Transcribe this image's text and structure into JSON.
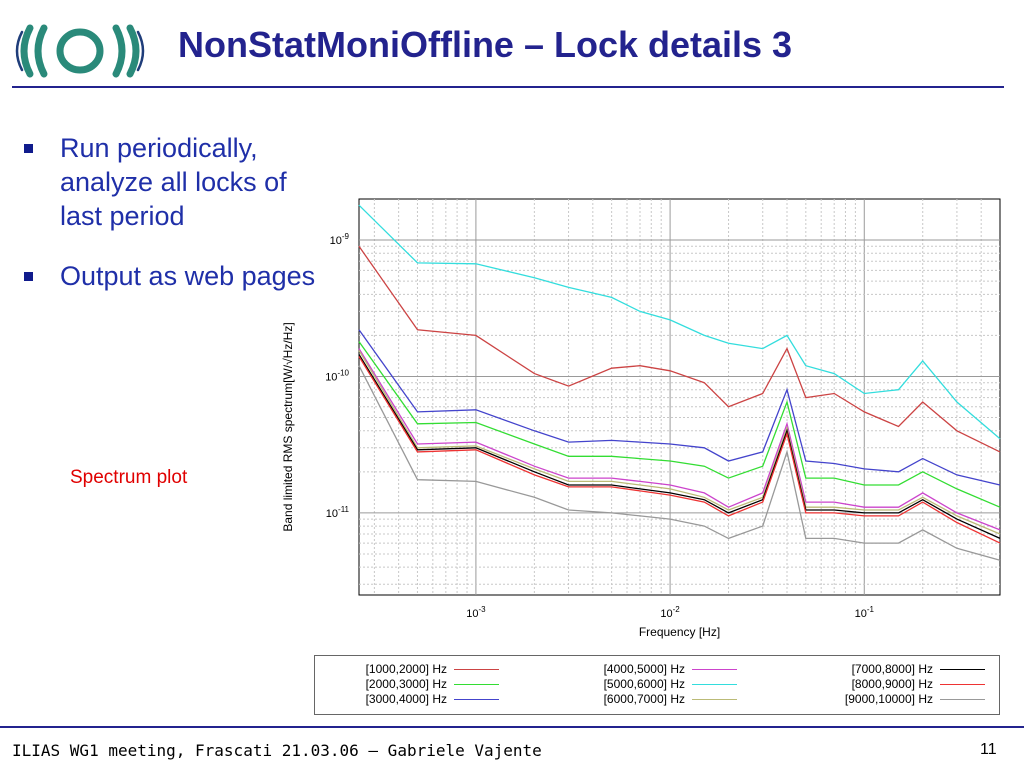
{
  "slide": {
    "title": "NonStatMoniOffline – Lock details 3",
    "bullets": [
      "Run periodically, analyze all locks of last period",
      "Output as web pages"
    ],
    "caption": "Spectrum plot",
    "footer": "ILIAS WG1 meeting, Frascati 21.03.06 – Gabriele Vajente",
    "page_number": "11",
    "logo": "ilias-logo"
  },
  "colors": {
    "title": "#23238e",
    "bullet_text": "#1f2fa8",
    "caption": "#e00000"
  },
  "chart_data": {
    "type": "line",
    "xlabel": "Frequency [Hz]",
    "ylabel": "Band limited RMS spectrum[W/√Hz/Hz]",
    "x_scale": "log",
    "y_scale": "log",
    "xlim": [
      0.00025,
      0.5
    ],
    "ylim": [
      2.5e-12,
      2e-09
    ],
    "xticks": [
      {
        "value": 0.001,
        "base": "10",
        "exp": "-3"
      },
      {
        "value": 0.01,
        "base": "10",
        "exp": "-2"
      },
      {
        "value": 0.1,
        "base": "10",
        "exp": "-1"
      }
    ],
    "yticks": [
      {
        "value": 1e-09,
        "base": "10",
        "exp": "-9"
      },
      {
        "value": 1e-10,
        "base": "10",
        "exp": "-10"
      },
      {
        "value": 1e-11,
        "base": "10",
        "exp": "-11"
      }
    ],
    "grid": true,
    "legend": "below",
    "series": [
      {
        "name": "[1000,2000] Hz",
        "color": "#cc4444",
        "x": [
          0.00025,
          0.0005,
          0.001,
          0.002,
          0.003,
          0.005,
          0.007,
          0.01,
          0.015,
          0.02,
          0.03,
          0.04,
          0.05,
          0.07,
          0.1,
          0.15,
          0.2,
          0.3,
          0.5
        ],
        "y": [
          9e-10,
          2.2e-10,
          2e-10,
          1.05e-10,
          8.5e-11,
          1.15e-10,
          1.2e-10,
          1.1e-10,
          9e-11,
          6e-11,
          7.5e-11,
          1.6e-10,
          7e-11,
          7.5e-11,
          5.5e-11,
          4.3e-11,
          6.5e-11,
          4e-11,
          2.8e-11
        ]
      },
      {
        "name": "[2000,3000] Hz",
        "color": "#33dd33",
        "x": [
          0.00025,
          0.0005,
          0.001,
          0.002,
          0.003,
          0.005,
          0.007,
          0.01,
          0.015,
          0.02,
          0.03,
          0.04,
          0.05,
          0.07,
          0.1,
          0.15,
          0.2,
          0.3,
          0.5
        ],
        "y": [
          1.8e-10,
          4.5e-11,
          4.6e-11,
          3.2e-11,
          2.6e-11,
          2.6e-11,
          2.5e-11,
          2.4e-11,
          2.2e-11,
          1.8e-11,
          2.2e-11,
          6.5e-11,
          1.8e-11,
          1.8e-11,
          1.6e-11,
          1.6e-11,
          2e-11,
          1.5e-11,
          1.1e-11
        ]
      },
      {
        "name": "[3000,4000] Hz",
        "color": "#4444cc",
        "x": [
          0.00025,
          0.0005,
          0.001,
          0.002,
          0.003,
          0.005,
          0.007,
          0.01,
          0.015,
          0.02,
          0.03,
          0.04,
          0.05,
          0.07,
          0.1,
          0.15,
          0.2,
          0.3,
          0.5
        ],
        "y": [
          2.2e-10,
          5.5e-11,
          5.7e-11,
          4e-11,
          3.3e-11,
          3.4e-11,
          3.3e-11,
          3.2e-11,
          3e-11,
          2.4e-11,
          2.8e-11,
          8e-11,
          2.4e-11,
          2.3e-11,
          2.1e-11,
          2e-11,
          2.5e-11,
          1.9e-11,
          1.6e-11
        ]
      },
      {
        "name": "[4000,5000] Hz",
        "color": "#cc44cc",
        "x": [
          0.00025,
          0.0005,
          0.001,
          0.002,
          0.003,
          0.005,
          0.007,
          0.01,
          0.015,
          0.02,
          0.03,
          0.04,
          0.05,
          0.07,
          0.1,
          0.15,
          0.2,
          0.3,
          0.5
        ],
        "y": [
          1.6e-10,
          3.2e-11,
          3.3e-11,
          2.2e-11,
          1.8e-11,
          1.8e-11,
          1.7e-11,
          1.6e-11,
          1.4e-11,
          1.1e-11,
          1.4e-11,
          4.5e-11,
          1.2e-11,
          1.2e-11,
          1.1e-11,
          1.1e-11,
          1.4e-11,
          1e-11,
          7.5e-12
        ]
      },
      {
        "name": "[5000,6000] Hz",
        "color": "#33dddd",
        "x": [
          0.00025,
          0.0005,
          0.001,
          0.002,
          0.003,
          0.005,
          0.007,
          0.01,
          0.015,
          0.02,
          0.03,
          0.04,
          0.05,
          0.07,
          0.1,
          0.15,
          0.2,
          0.3,
          0.5
        ],
        "y": [
          1.8e-09,
          6.8e-10,
          6.7e-10,
          5.3e-10,
          4.5e-10,
          3.8e-10,
          3e-10,
          2.6e-10,
          2e-10,
          1.75e-10,
          1.6e-10,
          2e-10,
          1.2e-10,
          1.05e-10,
          7.5e-11,
          8e-11,
          1.3e-10,
          6.5e-11,
          3.5e-11
        ]
      },
      {
        "name": "[6000,7000] Hz",
        "color": "#bbbb77",
        "x": [
          0.00025,
          0.0005,
          0.001,
          0.002,
          0.003,
          0.005,
          0.007,
          0.01,
          0.015,
          0.02,
          0.03,
          0.04,
          0.05,
          0.07,
          0.1,
          0.15,
          0.2,
          0.3,
          0.5
        ],
        "y": [
          1.55e-10,
          3e-11,
          3.1e-11,
          2.1e-11,
          1.7e-11,
          1.7e-11,
          1.6e-11,
          1.5e-11,
          1.3e-11,
          1.05e-11,
          1.3e-11,
          4.2e-11,
          1.1e-11,
          1.1e-11,
          1.05e-11,
          1.05e-11,
          1.3e-11,
          9.5e-12,
          7e-12
        ]
      },
      {
        "name": "[7000,8000] Hz",
        "color": "#000000",
        "x": [
          0.00025,
          0.0005,
          0.001,
          0.002,
          0.003,
          0.005,
          0.007,
          0.01,
          0.015,
          0.02,
          0.03,
          0.04,
          0.05,
          0.07,
          0.1,
          0.15,
          0.2,
          0.3,
          0.5
        ],
        "y": [
          1.45e-10,
          2.9e-11,
          3e-11,
          2e-11,
          1.6e-11,
          1.6e-11,
          1.5e-11,
          1.4e-11,
          1.25e-11,
          1e-11,
          1.25e-11,
          4e-11,
          1.05e-11,
          1.05e-11,
          1e-11,
          1e-11,
          1.25e-11,
          9e-12,
          6.5e-12
        ]
      },
      {
        "name": "[8000,9000] Hz",
        "color": "#ee3333",
        "x": [
          0.00025,
          0.0005,
          0.001,
          0.002,
          0.003,
          0.005,
          0.007,
          0.01,
          0.015,
          0.02,
          0.03,
          0.04,
          0.05,
          0.07,
          0.1,
          0.15,
          0.2,
          0.3,
          0.5
        ],
        "y": [
          1.4e-10,
          2.8e-11,
          2.9e-11,
          1.9e-11,
          1.55e-11,
          1.55e-11,
          1.45e-11,
          1.35e-11,
          1.2e-11,
          9.5e-12,
          1.2e-11,
          3.8e-11,
          1e-11,
          1e-11,
          9.5e-12,
          9.5e-12,
          1.2e-11,
          8.5e-12,
          6e-12
        ]
      },
      {
        "name": "[9000,10000] Hz",
        "color": "#999999",
        "x": [
          0.00025,
          0.0005,
          0.001,
          0.002,
          0.003,
          0.005,
          0.007,
          0.01,
          0.015,
          0.02,
          0.03,
          0.04,
          0.05,
          0.07,
          0.1,
          0.15,
          0.2,
          0.3,
          0.5
        ],
        "y": [
          1.2e-10,
          1.75e-11,
          1.7e-11,
          1.3e-11,
          1.05e-11,
          1e-11,
          9.5e-12,
          9e-12,
          8e-12,
          6.5e-12,
          8e-12,
          2.8e-11,
          6.5e-12,
          6.5e-12,
          6e-12,
          6e-12,
          7.5e-12,
          5.5e-12,
          4.5e-12
        ]
      }
    ]
  }
}
